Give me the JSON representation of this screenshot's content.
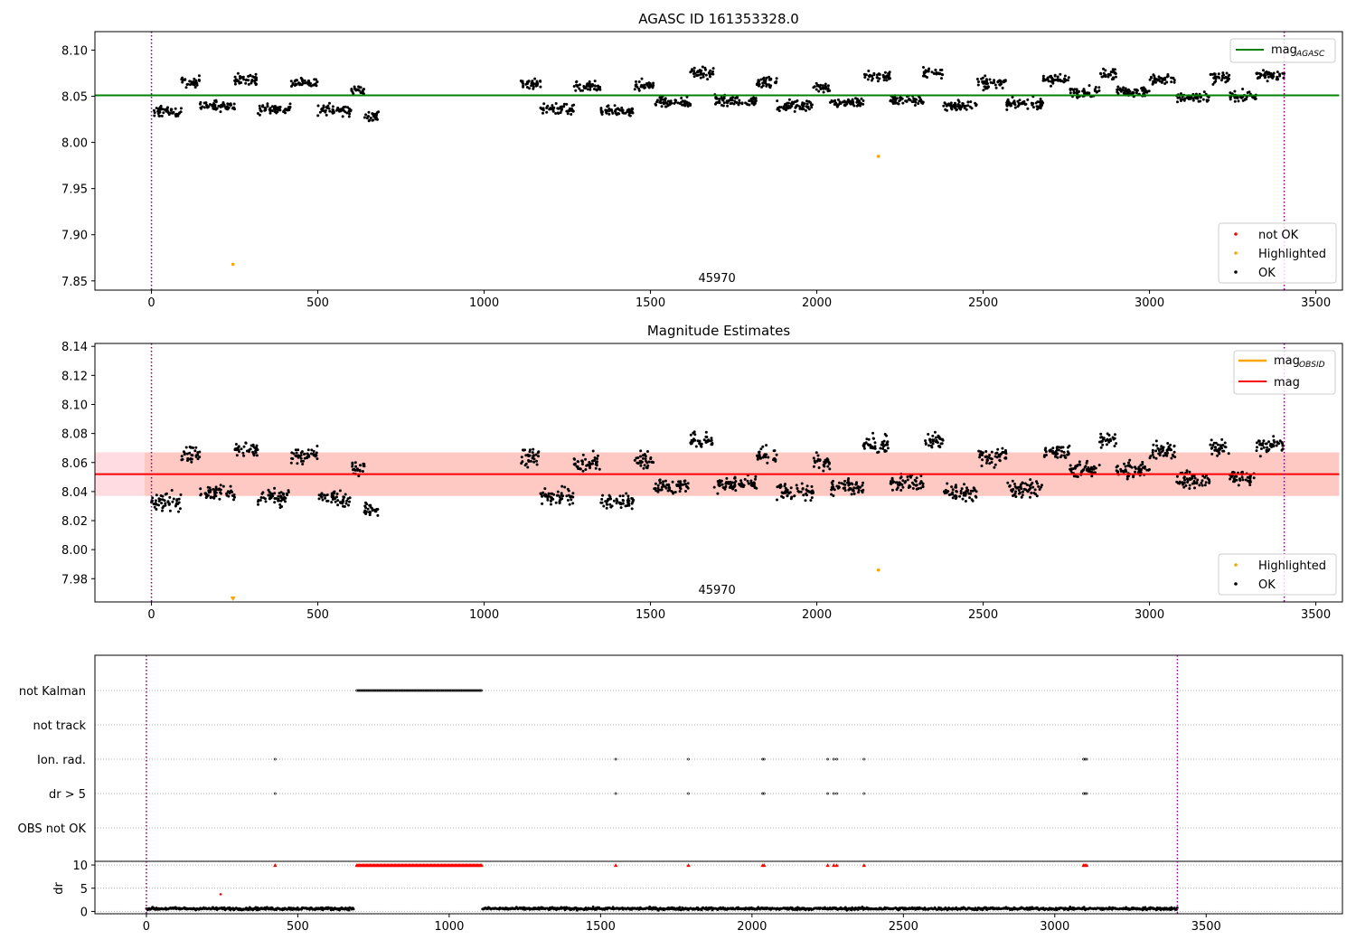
{
  "chart_data": [
    {
      "type": "scatter",
      "title": "AGASC ID 161353328.0",
      "xlim": [
        -170,
        3580
      ],
      "ylim": [
        7.84,
        8.12
      ],
      "x_ticks": [
        0,
        500,
        1000,
        1500,
        2000,
        2500,
        3000,
        3500
      ],
      "y_ticks": [
        7.85,
        7.9,
        7.95,
        8.0,
        8.05,
        8.1
      ],
      "grid": false,
      "vlines": [
        0,
        3405
      ],
      "hline": {
        "name": "mag_AGASC",
        "y": 8.051,
        "color": "#008000"
      },
      "obsid_label": {
        "text": "45970",
        "x": 1700
      },
      "legend_lines": [
        {
          "label": "mag",
          "sub": "AGASC",
          "color": "#008000"
        }
      ],
      "legend_points": [
        {
          "label": "not OK",
          "color": "#ff0000"
        },
        {
          "label": "Highlighted",
          "color": "#ffa500"
        },
        {
          "label": "OK",
          "color": "#000000"
        }
      ],
      "highlighted": [
        [
          245,
          7.868
        ],
        [
          2185,
          7.985
        ]
      ],
      "segments": [
        {
          "x": [
            0,
            685
          ],
          "blocks": [
            [
              0,
              90,
              8.033
            ],
            [
              90,
              145,
              8.066
            ],
            [
              145,
              250,
              8.039
            ],
            [
              250,
              320,
              8.069
            ],
            [
              320,
              420,
              8.036
            ],
            [
              420,
              500,
              8.065
            ],
            [
              500,
              600,
              8.035
            ],
            [
              600,
              640,
              8.057
            ],
            [
              640,
              685,
              8.028
            ]
          ]
        },
        {
          "x": [
            1110,
            3405
          ],
          "blocks": [
            [
              1110,
              1170,
              8.064
            ],
            [
              1170,
              1270,
              8.036
            ],
            [
              1270,
              1350,
              8.06
            ],
            [
              1350,
              1450,
              8.033
            ],
            [
              1450,
              1510,
              8.062
            ],
            [
              1510,
              1620,
              8.044
            ],
            [
              1620,
              1690,
              8.075
            ],
            [
              1690,
              1820,
              8.045
            ],
            [
              1820,
              1880,
              8.065
            ],
            [
              1880,
              1990,
              8.04
            ],
            [
              1990,
              2040,
              8.06
            ],
            [
              2040,
              2140,
              8.043
            ],
            [
              2140,
              2220,
              8.072
            ],
            [
              2220,
              2320,
              8.046
            ],
            [
              2320,
              2380,
              8.075
            ],
            [
              2380,
              2480,
              8.04
            ],
            [
              2480,
              2570,
              8.064
            ],
            [
              2570,
              2680,
              8.042
            ],
            [
              2680,
              2760,
              8.068
            ],
            [
              2760,
              2850,
              8.055
            ],
            [
              2850,
              2900,
              8.075
            ],
            [
              2900,
              3000,
              8.055
            ],
            [
              3000,
              3080,
              8.068
            ],
            [
              3080,
              3180,
              8.048
            ],
            [
              3180,
              3240,
              8.07
            ],
            [
              3240,
              3320,
              8.05
            ],
            [
              3320,
              3405,
              8.072
            ]
          ]
        }
      ]
    },
    {
      "type": "scatter",
      "title": "Magnitude Estimates",
      "xlim": [
        -170,
        3580
      ],
      "ylim": [
        7.964,
        8.142
      ],
      "x_ticks": [
        0,
        500,
        1000,
        1500,
        2000,
        2500,
        3000,
        3500
      ],
      "y_ticks": [
        7.98,
        8.0,
        8.02,
        8.04,
        8.06,
        8.08,
        8.1,
        8.12,
        8.14
      ],
      "grid": false,
      "vlines": [
        0,
        3405
      ],
      "band": {
        "y0": 8.037,
        "y1": 8.067
      },
      "hline": {
        "name": "mag",
        "y": 8.052,
        "color": "#ff0000"
      },
      "obsid_label": {
        "text": "45970",
        "x": 1700
      },
      "legend_lines": [
        {
          "label": "mag",
          "sub": "OBSID",
          "color": "#ffa500"
        },
        {
          "label": "mag",
          "sub": "",
          "color": "#ff0000"
        }
      ],
      "legend_points": [
        {
          "label": "Highlighted",
          "color": "#ffa500"
        },
        {
          "label": "OK",
          "color": "#000000"
        }
      ],
      "highlighted": [
        [
          2185,
          7.986
        ]
      ],
      "below_marker": {
        "x": 245,
        "color": "#ffa500"
      }
    },
    {
      "type": "scatter",
      "xlim": [
        -170,
        3950
      ],
      "x_ticks": [
        0,
        500,
        1000,
        1500,
        2000,
        2500,
        3000,
        3500
      ],
      "vlines": [
        0,
        3405
      ],
      "flag_rows": [
        "not Kalman",
        "not track",
        "Ion. rad.",
        "dr > 5",
        "OBS not OK"
      ],
      "flags": {
        "not Kalman": {
          "range": [
            695,
            1110
          ]
        },
        "Ion. rad.": {
          "points": [
            425,
            1550,
            1790,
            2035,
            2040,
            2250,
            2270,
            2280,
            2370,
            3095,
            3100,
            3105
          ]
        },
        "dr > 5": {
          "points": [
            425,
            1550,
            1790,
            2035,
            2040,
            2250,
            2270,
            2280,
            2370,
            3095,
            3100,
            3105
          ]
        }
      },
      "dr": {
        "ylabel": "dr",
        "ylim": [
          -0.5,
          10.6
        ],
        "y_ticks": [
          0,
          5,
          10
        ],
        "cap": 10,
        "capped_x": [
          425,
          1550,
          1790,
          2035,
          2040,
          2250,
          2270,
          2280,
          2370,
          3095,
          3100,
          3105
        ],
        "capped_range": [
          695,
          1110
        ],
        "outlier": [
          245,
          3.7
        ],
        "segments": [
          [
            0,
            685
          ],
          [
            1110,
            3405
          ]
        ],
        "typical": 0.6
      }
    }
  ]
}
